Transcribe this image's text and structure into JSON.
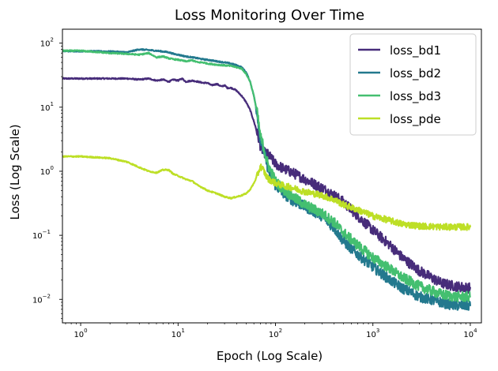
{
  "chart_data": {
    "type": "line",
    "title": "Loss Monitoring Over Time",
    "xlabel": "Epoch (Log Scale)",
    "ylabel": "Loss (Log Scale)",
    "xscale": "log",
    "yscale": "log",
    "xlim": [
      0.65,
      13000
    ],
    "ylim": [
      0.0043,
      165
    ],
    "x_ticks": [
      {
        "value": 1,
        "base": "10",
        "exp": "0"
      },
      {
        "value": 10,
        "base": "10",
        "exp": "1"
      },
      {
        "value": 100,
        "base": "10",
        "exp": "2"
      },
      {
        "value": 1000,
        "base": "10",
        "exp": "3"
      },
      {
        "value": 10000,
        "base": "10",
        "exp": "4"
      }
    ],
    "y_ticks": [
      {
        "value": 0.01,
        "base": "10",
        "exp": "−2"
      },
      {
        "value": 0.1,
        "base": "10",
        "exp": "−1"
      },
      {
        "value": 1,
        "base": "10",
        "exp": "0"
      },
      {
        "value": 10,
        "base": "10",
        "exp": "1"
      },
      {
        "value": 100,
        "base": "10",
        "exp": "2"
      }
    ],
    "grid": false,
    "legend_position": "top-right",
    "series": [
      {
        "name": "loss_bd1",
        "color": "#472c7a",
        "x": [
          0.65,
          1,
          2,
          3,
          4,
          5,
          6,
          7,
          8,
          9,
          10,
          11,
          12,
          14,
          16,
          18,
          20,
          22,
          25,
          28,
          30,
          32,
          35,
          38,
          40,
          45,
          50,
          55,
          60,
          65,
          70,
          75,
          80,
          85,
          90,
          100,
          120,
          150,
          200,
          300,
          400,
          500,
          700,
          1000,
          1500,
          2000,
          3000,
          5000,
          7000,
          10000
        ],
        "y": [
          28,
          28,
          28,
          28,
          27,
          28,
          26,
          27,
          25,
          27,
          26,
          28,
          25,
          26,
          25,
          24,
          24,
          22,
          23,
          21,
          22,
          20,
          20,
          19,
          18,
          15,
          12,
          9,
          6,
          4,
          2.5,
          2.0,
          1.9,
          1.8,
          1.6,
          1.3,
          1.1,
          0.95,
          0.75,
          0.55,
          0.42,
          0.33,
          0.2,
          0.12,
          0.07,
          0.045,
          0.028,
          0.018,
          0.016,
          0.015
        ]
      },
      {
        "name": "loss_bd2",
        "color": "#23798e",
        "x": [
          0.65,
          1,
          2,
          3,
          4,
          5,
          6,
          7,
          8,
          9,
          10,
          12,
          14,
          16,
          18,
          20,
          25,
          30,
          35,
          40,
          45,
          50,
          55,
          60,
          65,
          70,
          75,
          80,
          85,
          90,
          100,
          120,
          150,
          200,
          300,
          400,
          500,
          700,
          1000,
          1500,
          2000,
          3000,
          5000,
          7000,
          10000
        ],
        "y": [
          75,
          75,
          74,
          72,
          80,
          78,
          76,
          74,
          72,
          68,
          66,
          62,
          60,
          58,
          56,
          55,
          52,
          50,
          48,
          45,
          42,
          35,
          25,
          15,
          8,
          3,
          2.2,
          1.5,
          1.0,
          0.8,
          0.6,
          0.45,
          0.35,
          0.28,
          0.2,
          0.13,
          0.08,
          0.05,
          0.032,
          0.02,
          0.015,
          0.011,
          0.009,
          0.008,
          0.008
        ]
      },
      {
        "name": "loss_bd3",
        "color": "#44bf70",
        "x": [
          0.65,
          1,
          2,
          3,
          4,
          5,
          6,
          7,
          8,
          9,
          10,
          12,
          14,
          16,
          18,
          20,
          25,
          30,
          35,
          40,
          45,
          50,
          55,
          60,
          65,
          70,
          75,
          80,
          85,
          90,
          100,
          120,
          150,
          200,
          300,
          400,
          500,
          700,
          1000,
          1500,
          2000,
          3000,
          5000,
          7000,
          10000
        ],
        "y": [
          76,
          76,
          70,
          68,
          66,
          70,
          60,
          62,
          58,
          56,
          55,
          52,
          54,
          50,
          50,
          48,
          46,
          45,
          44,
          42,
          40,
          33,
          25,
          15,
          8,
          3.5,
          2.5,
          1.6,
          1.2,
          1.0,
          0.7,
          0.52,
          0.4,
          0.3,
          0.22,
          0.16,
          0.11,
          0.07,
          0.045,
          0.03,
          0.022,
          0.016,
          0.012,
          0.011,
          0.011
        ]
      },
      {
        "name": "loss_pde",
        "color": "#bddf26",
        "x": [
          0.65,
          1,
          2,
          3,
          4,
          5,
          6,
          7,
          8,
          9,
          10,
          12,
          14,
          16,
          18,
          20,
          25,
          30,
          35,
          40,
          45,
          50,
          55,
          60,
          65,
          70,
          75,
          80,
          85,
          90,
          100,
          120,
          150,
          200,
          300,
          400,
          500,
          700,
          1000,
          1500,
          2000,
          3000,
          5000,
          7000,
          10000
        ],
        "y": [
          1.7,
          1.7,
          1.6,
          1.4,
          1.15,
          1.0,
          0.95,
          1.05,
          1.05,
          0.9,
          0.85,
          0.75,
          0.7,
          0.6,
          0.55,
          0.5,
          0.45,
          0.4,
          0.38,
          0.4,
          0.42,
          0.45,
          0.52,
          0.65,
          0.85,
          1.2,
          1.05,
          0.85,
          0.75,
          0.72,
          0.65,
          0.6,
          0.55,
          0.48,
          0.42,
          0.36,
          0.3,
          0.25,
          0.2,
          0.17,
          0.15,
          0.14,
          0.135,
          0.135,
          0.135
        ]
      }
    ]
  }
}
